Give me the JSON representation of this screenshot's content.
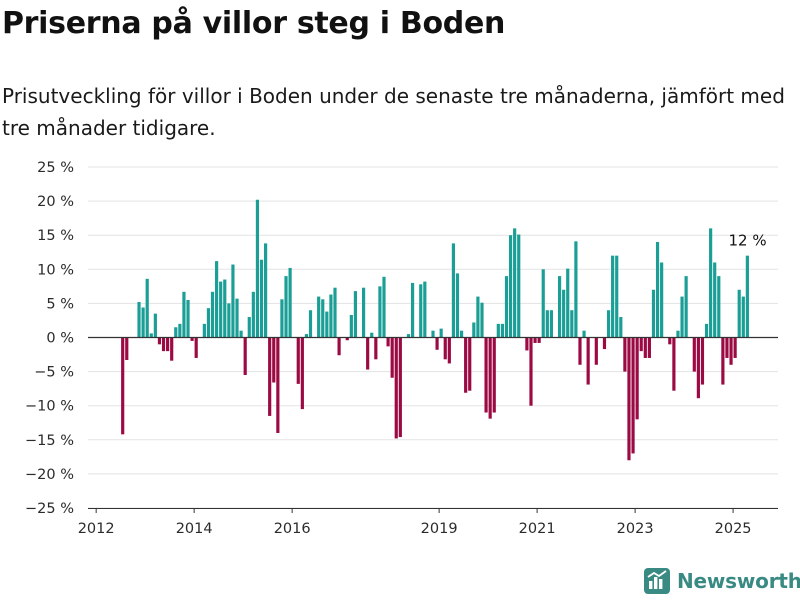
{
  "page": {
    "title": "Priserna på villor steg i Boden",
    "subtitle": "Prisutveckling för villor i Boden under de senaste tre månaderna, jämfört med tre månader tidigare.",
    "brand": "Newsworthy"
  },
  "colors": {
    "positive": "#1a9e96",
    "negative": "#9c0a44",
    "grid": "#e3e3e3",
    "zero_line": "#333333",
    "brand": "#3a8a84"
  },
  "chart_data": {
    "type": "bar",
    "xlabel": "",
    "ylabel": "",
    "ylim": [
      -25,
      25
    ],
    "x_range": [
      "2011-11",
      "2025-12"
    ],
    "y_ticks": [
      25,
      20,
      15,
      10,
      5,
      0,
      -5,
      -10,
      -15,
      -20,
      -25
    ],
    "y_tick_labels": [
      "25 %",
      "20 %",
      "15 %",
      "10 %",
      "5 %",
      "0 %",
      "−5 %",
      "−10 %",
      "−15 %",
      "−20 %",
      "−25 %"
    ],
    "x_ticks": [
      {
        "date": "2012-01",
        "label": "2012"
      },
      {
        "date": "2014-01",
        "label": "2014"
      },
      {
        "date": "2016-01",
        "label": "2016"
      },
      {
        "date": "2019-01",
        "label": "2019"
      },
      {
        "date": "2021-01",
        "label": "2021"
      },
      {
        "date": "2023-01",
        "label": "2023"
      },
      {
        "date": "2025-01",
        "label": "2025"
      }
    ],
    "annotation": {
      "date": "2025-06",
      "value": 12,
      "text": "12 %"
    },
    "series": [
      {
        "start": "2012-07",
        "values": [
          -14.2,
          -3.3,
          0,
          0,
          5.2,
          4.4,
          8.6,
          0.6,
          3.5,
          -1,
          -2,
          -2,
          -3.4,
          1.5,
          2,
          6.7,
          5.5,
          -0.5,
          -3,
          0,
          2,
          4.3,
          6.7,
          11.2,
          8.2,
          8.5,
          5,
          10.7,
          5.7,
          1,
          -5.5,
          3,
          6.7,
          20.2,
          11.4,
          13.8,
          -11.5,
          -6.6,
          -14,
          5.6,
          9,
          10.2,
          0,
          -6.8,
          -10.5,
          0.5,
          4,
          0,
          6,
          5.6,
          3.8,
          6.3,
          7.3,
          -2.6,
          0,
          -0.4,
          3.3,
          6.8,
          0,
          7.3,
          -4.7,
          0.7,
          -3.2,
          7.5,
          8.9,
          -1.3,
          -5.9,
          -14.8,
          -14.6,
          0,
          0.5,
          8,
          0,
          7.8,
          8.2,
          0,
          1,
          -1.8,
          1.3,
          -3.2,
          -3.8,
          13.8,
          9.4,
          1,
          -8.1,
          -7.8,
          2.2,
          6,
          5.1,
          -11,
          -11.9,
          -11,
          2,
          2,
          9,
          15,
          16,
          15.1,
          0,
          -1.9,
          -10,
          -0.8,
          -0.8,
          10,
          4,
          4,
          0,
          9,
          7,
          10.1,
          4,
          14.1,
          -4,
          1,
          -6.9,
          0,
          -4,
          0,
          -1.7,
          4,
          12,
          12,
          3,
          -5,
          -18,
          -17,
          -12,
          -2,
          -3,
          -3,
          7,
          14,
          11,
          0,
          -1,
          -7.8,
          1,
          6,
          9,
          0,
          -5,
          -8.9,
          -6.9,
          2,
          16,
          11,
          9,
          -6.9,
          -3,
          -4,
          -3,
          7,
          6,
          12
        ]
      }
    ]
  }
}
